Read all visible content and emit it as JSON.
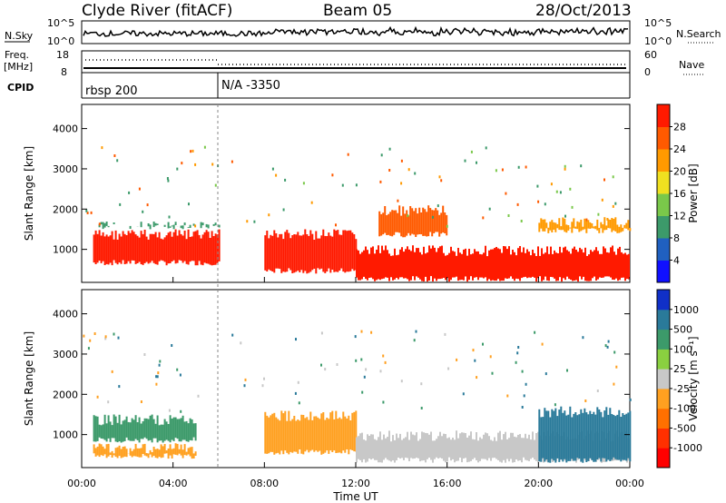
{
  "header": {
    "station": "Clyde River (fitACF)",
    "beam": "Beam 05",
    "date": "28/Oct/2013"
  },
  "noise_panel": {
    "left_label": "N.Sky",
    "left_ticks": [
      "10^5",
      "10^0"
    ],
    "right_label": "N.Search",
    "right_ticks": [
      "10^5",
      "10^0"
    ]
  },
  "freq_panel": {
    "left_label_line1": "Freq.",
    "left_label_line2": "[MHz]",
    "left_ticks": [
      "18",
      "8"
    ],
    "right_label": "Nave",
    "right_ticks": [
      "60",
      "0"
    ]
  },
  "cpid_panel": {
    "label": "CPID",
    "entries": [
      {
        "time": "00:00",
        "name": "rbsp 200"
      },
      {
        "time": "06:00",
        "name": "N/A -3350"
      }
    ]
  },
  "chart_data": [
    {
      "type": "heatmap",
      "quantity": "power",
      "ylabel": "Slant Range [km]",
      "xlabel": "",
      "x_ticks": [
        "00:00",
        "04:00",
        "08:00",
        "12:00",
        "16:00",
        "20:00",
        "00:00"
      ],
      "x_range_hours": [
        0,
        24
      ],
      "y_ticks": [
        1000,
        2000,
        3000,
        4000
      ],
      "ylim": [
        180,
        4600
      ],
      "colorbar": {
        "label": "Power [dB]",
        "ticks": [
          "4",
          "8",
          "12",
          "16",
          "20",
          "24",
          "28"
        ],
        "range": [
          0,
          32
        ],
        "colors": [
          "#1010ff",
          "#2060c0",
          "#3c9a6a",
          "#7ac84a",
          "#f0e020",
          "#ff9a00",
          "#ff5a00",
          "#ff1a00"
        ]
      },
      "regions": [
        {
          "t0": 0.5,
          "t1": 6.0,
          "r0": 600,
          "r1": 1500,
          "level": 28
        },
        {
          "t0": 0.5,
          "t1": 6.0,
          "r0": 1500,
          "r1": 1700,
          "level": 10
        },
        {
          "t0": 8.0,
          "t1": 12.0,
          "r0": 400,
          "r1": 1500,
          "level": 28
        },
        {
          "t0": 12.0,
          "t1": 24.0,
          "r0": 200,
          "r1": 1100,
          "level": 28
        },
        {
          "t0": 13.0,
          "t1": 16.0,
          "r0": 1300,
          "r1": 2100,
          "level": 24
        },
        {
          "t0": 20.0,
          "t1": 24.0,
          "r0": 1400,
          "r1": 1800,
          "level": 22
        }
      ]
    },
    {
      "type": "heatmap",
      "quantity": "velocity",
      "ylabel": "Slant Range [km]",
      "xlabel": "Time UT",
      "x_ticks": [
        "00:00",
        "04:00",
        "08:00",
        "12:00",
        "16:00",
        "20:00",
        "00:00"
      ],
      "x_range_hours": [
        0,
        24
      ],
      "y_ticks": [
        1000,
        2000,
        3000,
        4000
      ],
      "ylim": [
        180,
        4600
      ],
      "colorbar": {
        "label": "Velocity [m s⁻¹]",
        "ticks": [
          "1000",
          "500",
          "100",
          "25",
          "-25",
          "-100",
          "-500",
          "-1000"
        ],
        "colors": [
          "#1030c8",
          "#2a7a9a",
          "#3c9a6a",
          "#8ad040",
          "#c8c8c8",
          "#ffa020",
          "#ff7000",
          "#ff3000",
          "#ff0000"
        ]
      },
      "regions": [
        {
          "t0": 0.5,
          "t1": 5.0,
          "r0": 800,
          "r1": 1500,
          "level": "100"
        },
        {
          "t0": 0.5,
          "t1": 5.0,
          "r0": 400,
          "r1": 800,
          "level": "-100"
        },
        {
          "t0": 8.0,
          "t1": 12.0,
          "r0": 500,
          "r1": 1600,
          "level": "-100"
        },
        {
          "t0": 12.0,
          "t1": 24.0,
          "r0": 300,
          "r1": 1100,
          "level": "-25"
        },
        {
          "t0": 20.0,
          "t1": 24.0,
          "r0": 300,
          "r1": 1700,
          "level": "500"
        }
      ]
    }
  ]
}
